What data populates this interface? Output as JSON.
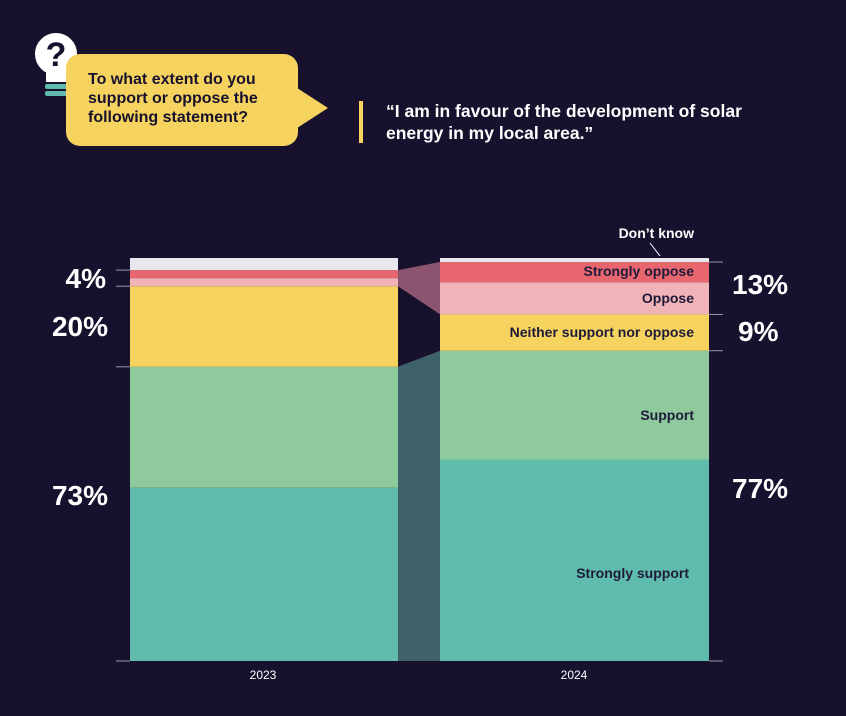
{
  "prompt": {
    "question": "To what extent do you support or oppose the following statement?",
    "statement": "“I am in favour of the development of solar energy in my local area.”"
  },
  "icons": {
    "question_bulb": "lightbulb-question-icon"
  },
  "colors": {
    "background": "#17112d",
    "strongly_support": "#5fbcac",
    "support": "#8fca9d",
    "neither": "#f6d35f",
    "oppose": "#efb3b8",
    "strongly_oppose": "#e8676f",
    "dont_know": "#e9e7ee",
    "connector": "#3f6169",
    "connector_oppose": "#8b5570"
  },
  "chart_data": {
    "type": "bar",
    "stacked": true,
    "normalized": true,
    "categories": [
      "2023",
      "2024"
    ],
    "series": [
      {
        "name": "Strongly support",
        "values": [
          43,
          50
        ]
      },
      {
        "name": "Support",
        "values": [
          30,
          27
        ]
      },
      {
        "name": "Neither support nor oppose",
        "values": [
          20,
          9
        ]
      },
      {
        "name": "Oppose",
        "values": [
          2,
          8
        ]
      },
      {
        "name": "Strongly oppose",
        "values": [
          2,
          5
        ]
      },
      {
        "name": "Don’t know",
        "values": [
          3,
          1
        ]
      }
    ],
    "group_labels": {
      "2023": {
        "support": "73%",
        "neither": "20%",
        "oppose": "4%"
      },
      "2024": {
        "support": "77%",
        "neither": "9%",
        "oppose": "13%"
      }
    },
    "ylim": [
      0,
      100
    ]
  }
}
